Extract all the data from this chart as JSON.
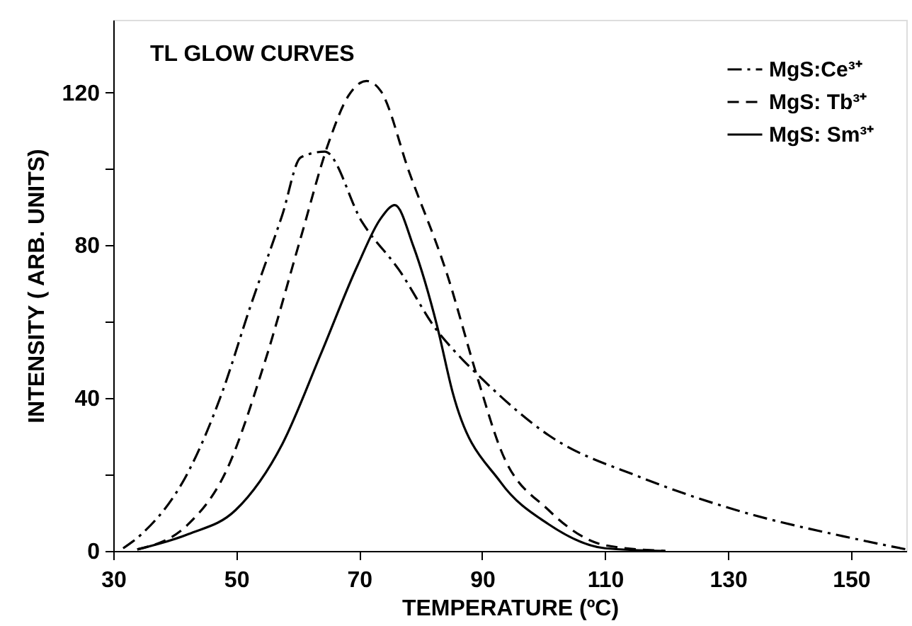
{
  "chart_data": {
    "type": "line",
    "annotations": [
      "TL GLOW CURVES"
    ],
    "xlabel": "TEMPERATURE (ºC)",
    "ylabel": "INTENSITY ( ARB. UNITS)",
    "xlim": [
      30,
      159
    ],
    "ylim": [
      0,
      139
    ],
    "xticks": [
      30,
      50,
      70,
      90,
      110,
      130,
      150
    ],
    "yticks": [
      0,
      {
        "value": 20,
        "label": null
      },
      40,
      {
        "value": 60,
        "label": null
      },
      80,
      {
        "value": 100,
        "label": null
      },
      120
    ],
    "grid": false,
    "legend": "top right",
    "marker": "none",
    "series": [
      {
        "name": "MgS:Ce³⁺",
        "color": "#000000",
        "line_style": "dashdot",
        "x": [
          31.6,
          34.6,
          42.2,
          47.6,
          52.2,
          57.5,
          60.5,
          64.4,
          70.5,
          76.5,
          82.7,
          85.4,
          90,
          100.8,
          115.9,
          131.3,
          150.3,
          159
        ],
        "values": [
          0.7,
          4.4,
          20.7,
          41,
          63.5,
          88,
          103,
          104.5,
          86,
          73.5,
          57.6,
          52.5,
          45,
          30.3,
          19.2,
          10.7,
          3.3,
          0.4
        ]
      },
      {
        "name": "MgS: Tb³⁺",
        "color": "#000000",
        "line_style": "dashed",
        "x": [
          33.9,
          42.2,
          48.3,
          54.5,
          60.5,
          65,
          68.2,
          71.2,
          73.5,
          78.1,
          84.3,
          89.3,
          93,
          100.8,
          110,
          119.8
        ],
        "values": [
          0.4,
          7,
          20.7,
          48.7,
          82,
          106.7,
          119,
          123,
          120.4,
          99.3,
          72.4,
          45,
          26.6,
          10.7,
          1.5,
          0
        ]
      },
      {
        "name": "MgS: Sm³⁺",
        "color": "#000000",
        "line_style": "solid",
        "x": [
          33.9,
          42.2,
          49.9,
          57.5,
          63.7,
          69.7,
          73.5,
          75.8,
          78.8,
          82.7,
          85.2,
          93,
          100.8,
          110,
          119.8
        ],
        "values": [
          0.4,
          4.4,
          10.7,
          28,
          51.3,
          74.6,
          87,
          90.5,
          79.8,
          58.7,
          41.5,
          18,
          7,
          0.7,
          0
        ]
      }
    ]
  }
}
